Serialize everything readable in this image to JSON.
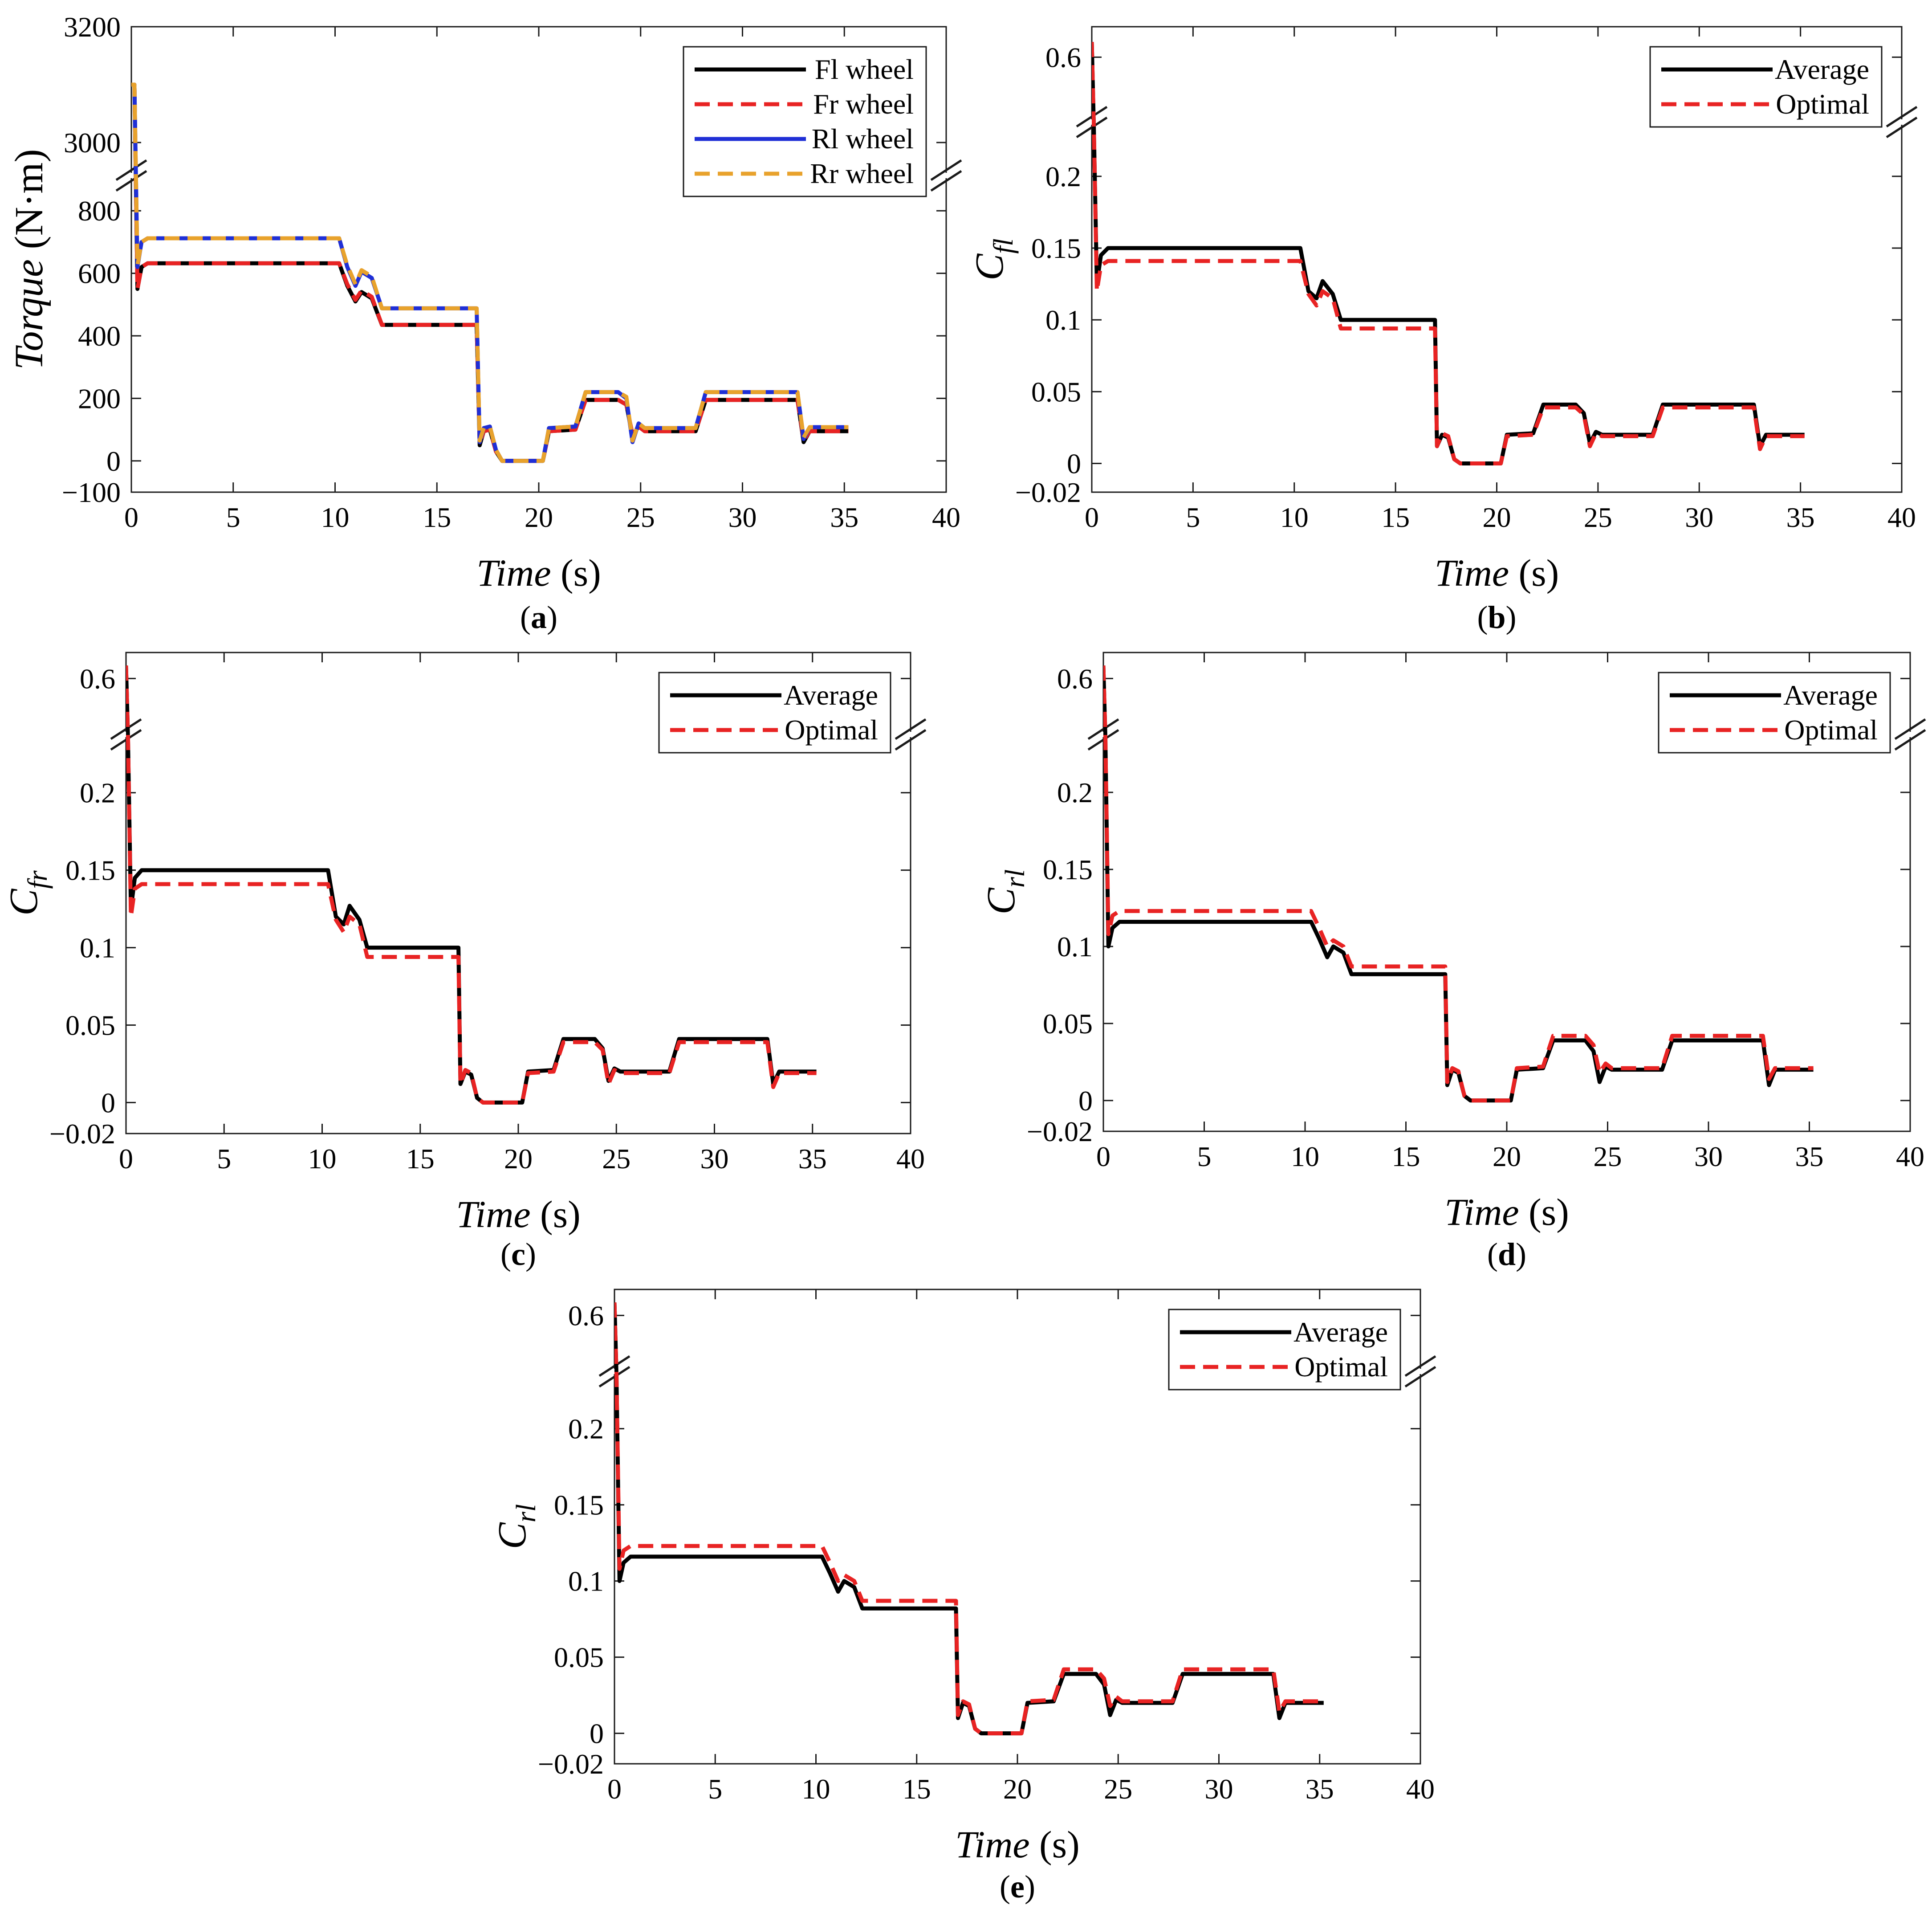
{
  "figure": {
    "panel_labels": [
      "(a)",
      "(b)",
      "(c)",
      "(d)",
      "(e)"
    ]
  },
  "chart_data": [
    {
      "id": "a",
      "type": "line",
      "panel_label": "(a)",
      "xlabel": "Time (s)",
      "ylabel": "Torque (N·m)",
      "xlim": [
        0,
        40
      ],
      "xticks": [
        "0",
        "5",
        "10",
        "15",
        "20",
        "25",
        "30",
        "35",
        "40"
      ],
      "axis_break": true,
      "ylim_lower": [
        -100,
        900
      ],
      "ylim_upper": [
        2950,
        3200
      ],
      "yticks_lower": [
        "−100",
        "0",
        "200",
        "400",
        "600",
        "800"
      ],
      "yticks_upper": [
        "3000",
        "3200"
      ],
      "legend_position": "top-right",
      "series": [
        {
          "name": "Fl wheel",
          "color": "#000000",
          "dash": "solid",
          "x": [
            0,
            0.15,
            0.3,
            0.5,
            0.8,
            10.2,
            10.6,
            11.0,
            11.3,
            11.8,
            12.3,
            16.95,
            17.1,
            17.3,
            17.6,
            17.9,
            18.2,
            20.2,
            20.5,
            21.8,
            22.3,
            23.9,
            24.3,
            24.6,
            24.9,
            25.2,
            25.6,
            27.7,
            28.2,
            32.7,
            33.0,
            33.3,
            35.2
          ],
          "y": [
            3100,
            3100,
            550,
            620,
            632,
            632,
            560,
            510,
            540,
            520,
            435,
            435,
            50,
            95,
            100,
            30,
            0,
            0,
            95,
            100,
            195,
            195,
            180,
            80,
            110,
            95,
            95,
            95,
            195,
            195,
            60,
            95,
            95
          ]
        },
        {
          "name": "Fr wheel",
          "color": "#e82323",
          "dash": "dashed",
          "x": [
            0,
            0.15,
            0.3,
            0.5,
            0.8,
            10.2,
            10.6,
            11.0,
            11.3,
            11.8,
            12.3,
            16.95,
            17.1,
            17.3,
            17.6,
            17.9,
            18.2,
            20.2,
            20.5,
            21.8,
            22.3,
            23.9,
            24.3,
            24.6,
            24.9,
            25.2,
            25.6,
            27.7,
            28.2,
            32.7,
            33.0,
            33.3,
            35.2
          ],
          "y": [
            3100,
            3100,
            550,
            620,
            632,
            632,
            565,
            515,
            545,
            525,
            435,
            435,
            55,
            95,
            100,
            30,
            0,
            0,
            95,
            100,
            195,
            195,
            180,
            85,
            110,
            95,
            95,
            95,
            195,
            195,
            65,
            95,
            95
          ]
        },
        {
          "name": "Rl wheel",
          "color": "#1f2fd6",
          "dash": "solid",
          "x": [
            0,
            0.15,
            0.3,
            0.5,
            0.8,
            10.2,
            10.6,
            11.0,
            11.3,
            11.8,
            12.3,
            16.95,
            17.1,
            17.3,
            17.6,
            17.9,
            18.2,
            20.2,
            20.5,
            21.8,
            22.3,
            23.9,
            24.3,
            24.6,
            24.9,
            25.2,
            25.6,
            27.7,
            28.2,
            32.7,
            33.0,
            33.3,
            35.2
          ],
          "y": [
            3100,
            3100,
            620,
            700,
            712,
            712,
            620,
            560,
            605,
            585,
            488,
            488,
            60,
            105,
            110,
            35,
            0,
            0,
            105,
            110,
            220,
            220,
            200,
            60,
            120,
            105,
            105,
            105,
            220,
            220,
            70,
            108,
            108
          ]
        },
        {
          "name": "Rr wheel",
          "color": "#e8a22c",
          "dash": "dashed",
          "x": [
            0,
            0.15,
            0.3,
            0.5,
            0.8,
            10.2,
            10.6,
            11.0,
            11.3,
            11.8,
            12.3,
            16.95,
            17.1,
            17.3,
            17.6,
            17.9,
            18.2,
            20.2,
            20.5,
            21.8,
            22.3,
            23.9,
            24.3,
            24.6,
            24.9,
            25.2,
            25.6,
            27.7,
            28.2,
            32.7,
            33.0,
            33.3,
            35.2
          ],
          "y": [
            3100,
            3100,
            625,
            700,
            712,
            712,
            625,
            565,
            610,
            590,
            488,
            488,
            65,
            105,
            110,
            35,
            0,
            0,
            105,
            110,
            220,
            220,
            205,
            65,
            120,
            105,
            105,
            105,
            220,
            220,
            75,
            108,
            108
          ]
        }
      ]
    },
    {
      "id": "b",
      "type": "line",
      "panel_label": "(b)",
      "xlabel": "Time (s)",
      "ylabel_base": "C",
      "ylabel_sub": "fl",
      "xlim": [
        0,
        40
      ],
      "xticks": [
        "0",
        "5",
        "10",
        "15",
        "20",
        "25",
        "30",
        "35",
        "40"
      ],
      "axis_break": true,
      "ylim_lower": [
        -0.02,
        0.235
      ],
      "ylim_upper": [
        0.56,
        0.62
      ],
      "yticks_lower": [
        "−0.02",
        "0",
        "0.05",
        "0.1",
        "0.15",
        "0.2"
      ],
      "yticks_upper": [
        "0.6"
      ],
      "legend_position": "top-right",
      "series": [
        {
          "name": "Average",
          "color": "#000000",
          "dash": "solid",
          "x": [
            0,
            0.1,
            0.25,
            0.45,
            0.8,
            10.3,
            10.7,
            11.1,
            11.4,
            11.9,
            12.3,
            16.95,
            17.05,
            17.3,
            17.6,
            17.9,
            18.2,
            20.2,
            20.5,
            21.8,
            22.3,
            23.9,
            24.3,
            24.6,
            24.9,
            25.2,
            25.6,
            27.7,
            28.2,
            32.7,
            33.0,
            33.3,
            35.2
          ],
          "y": [
            0.61,
            0.3,
            0.125,
            0.145,
            0.15,
            0.15,
            0.12,
            0.115,
            0.127,
            0.118,
            0.1,
            0.1,
            0.012,
            0.02,
            0.018,
            0.003,
            0,
            0,
            0.02,
            0.021,
            0.041,
            0.041,
            0.035,
            0.014,
            0.022,
            0.02,
            0.02,
            0.02,
            0.041,
            0.041,
            0.012,
            0.02,
            0.02
          ]
        },
        {
          "name": "Optimal",
          "color": "#e82323",
          "dash": "dashed",
          "x": [
            0,
            0.1,
            0.25,
            0.45,
            0.8,
            10.3,
            10.7,
            11.1,
            11.4,
            11.9,
            12.3,
            16.95,
            17.05,
            17.3,
            17.6,
            17.9,
            18.2,
            20.2,
            20.5,
            21.8,
            22.3,
            23.9,
            24.3,
            24.6,
            24.9,
            25.2,
            25.6,
            27.7,
            28.2,
            32.7,
            33.0,
            33.3,
            35.2
          ],
          "y": [
            0.61,
            0.3,
            0.12,
            0.138,
            0.141,
            0.141,
            0.118,
            0.11,
            0.12,
            0.115,
            0.094,
            0.094,
            0.012,
            0.021,
            0.019,
            0.003,
            0,
            0,
            0.019,
            0.02,
            0.039,
            0.039,
            0.034,
            0.012,
            0.021,
            0.019,
            0.019,
            0.019,
            0.039,
            0.039,
            0.01,
            0.019,
            0.019
          ]
        }
      ]
    },
    {
      "id": "c",
      "type": "line",
      "panel_label": "(c)",
      "xlabel": "Time (s)",
      "ylabel_base": "C",
      "ylabel_sub": "fr",
      "xlim": [
        0,
        40
      ],
      "xticks": [
        "0",
        "5",
        "10",
        "15",
        "20",
        "25",
        "30",
        "35",
        "40"
      ],
      "axis_break": true,
      "ylim_lower": [
        -0.02,
        0.235
      ],
      "ylim_upper": [
        0.56,
        0.62
      ],
      "yticks_lower": [
        "−0.02",
        "0",
        "0.05",
        "0.1",
        "0.15",
        "0.2"
      ],
      "yticks_upper": [
        "0.6"
      ],
      "legend_position": "top-right",
      "series": [
        {
          "name": "Average",
          "color": "#000000",
          "dash": "solid",
          "x": [
            0,
            0.1,
            0.25,
            0.45,
            0.8,
            10.3,
            10.7,
            11.1,
            11.4,
            11.9,
            12.3,
            16.95,
            17.05,
            17.3,
            17.6,
            17.9,
            18.2,
            20.2,
            20.5,
            21.8,
            22.3,
            23.9,
            24.3,
            24.6,
            24.9,
            25.2,
            25.6,
            27.7,
            28.2,
            32.7,
            33.0,
            33.3,
            35.2
          ],
          "y": [
            0.61,
            0.3,
            0.125,
            0.145,
            0.15,
            0.15,
            0.12,
            0.115,
            0.127,
            0.118,
            0.1,
            0.1,
            0.012,
            0.02,
            0.018,
            0.003,
            0,
            0,
            0.02,
            0.021,
            0.041,
            0.041,
            0.035,
            0.014,
            0.022,
            0.02,
            0.02,
            0.02,
            0.041,
            0.041,
            0.012,
            0.02,
            0.02
          ]
        },
        {
          "name": "Optimal",
          "color": "#e82323",
          "dash": "dashed",
          "x": [
            0,
            0.1,
            0.25,
            0.45,
            0.8,
            10.3,
            10.7,
            11.1,
            11.4,
            11.9,
            12.3,
            16.95,
            17.05,
            17.3,
            17.6,
            17.9,
            18.2,
            20.2,
            20.5,
            21.8,
            22.3,
            23.9,
            24.3,
            24.6,
            24.9,
            25.2,
            25.6,
            27.7,
            28.2,
            32.7,
            33.0,
            33.3,
            35.2
          ],
          "y": [
            0.61,
            0.3,
            0.12,
            0.138,
            0.141,
            0.141,
            0.118,
            0.11,
            0.12,
            0.115,
            0.094,
            0.094,
            0.012,
            0.021,
            0.019,
            0.003,
            0,
            0,
            0.019,
            0.02,
            0.039,
            0.039,
            0.034,
            0.012,
            0.021,
            0.019,
            0.019,
            0.019,
            0.039,
            0.039,
            0.01,
            0.019,
            0.019
          ]
        }
      ]
    },
    {
      "id": "d",
      "type": "line",
      "panel_label": "(d)",
      "xlabel": "Time (s)",
      "ylabel_base": "C",
      "ylabel_sub": "rl",
      "xlim": [
        0,
        40
      ],
      "xticks": [
        "0",
        "5",
        "10",
        "15",
        "20",
        "25",
        "30",
        "35",
        "40"
      ],
      "axis_break": true,
      "ylim_lower": [
        -0.02,
        0.235
      ],
      "ylim_upper": [
        0.56,
        0.62
      ],
      "yticks_lower": [
        "−0.02",
        "0",
        "0.05",
        "0.1",
        "0.15",
        "0.2"
      ],
      "yticks_upper": [
        "0.6"
      ],
      "legend_position": "top-right",
      "series": [
        {
          "name": "Average",
          "color": "#000000",
          "dash": "solid",
          "x": [
            0,
            0.1,
            0.25,
            0.45,
            0.8,
            10.3,
            10.7,
            11.1,
            11.4,
            11.9,
            12.3,
            16.95,
            17.05,
            17.3,
            17.6,
            17.9,
            18.2,
            20.2,
            20.5,
            21.8,
            22.3,
            23.9,
            24.3,
            24.6,
            24.9,
            25.2,
            25.6,
            27.7,
            28.2,
            32.7,
            33.0,
            33.3,
            35.2
          ],
          "y": [
            0.61,
            0.3,
            0.1,
            0.112,
            0.116,
            0.116,
            0.105,
            0.093,
            0.1,
            0.096,
            0.082,
            0.082,
            0.01,
            0.02,
            0.018,
            0.003,
            0,
            0,
            0.02,
            0.021,
            0.039,
            0.039,
            0.032,
            0.012,
            0.022,
            0.02,
            0.02,
            0.02,
            0.039,
            0.039,
            0.01,
            0.02,
            0.02
          ]
        },
        {
          "name": "Optimal",
          "color": "#e82323",
          "dash": "dashed",
          "x": [
            0,
            0.1,
            0.25,
            0.45,
            0.8,
            10.3,
            10.7,
            11.1,
            11.4,
            11.9,
            12.3,
            16.95,
            17.05,
            17.3,
            17.6,
            17.9,
            18.2,
            20.2,
            20.5,
            21.8,
            22.3,
            23.9,
            24.3,
            24.6,
            24.9,
            25.2,
            25.6,
            27.7,
            28.2,
            32.7,
            33.0,
            33.3,
            35.2
          ],
          "y": [
            0.61,
            0.3,
            0.108,
            0.12,
            0.123,
            0.123,
            0.112,
            0.1,
            0.104,
            0.1,
            0.087,
            0.087,
            0.012,
            0.021,
            0.019,
            0.003,
            0,
            0,
            0.021,
            0.022,
            0.042,
            0.042,
            0.036,
            0.018,
            0.024,
            0.021,
            0.021,
            0.021,
            0.042,
            0.042,
            0.014,
            0.021,
            0.021
          ]
        }
      ]
    },
    {
      "id": "e",
      "type": "line",
      "panel_label": "(e)",
      "xlabel": "Time (s)",
      "ylabel_base": "C",
      "ylabel_sub": "rl",
      "xlim": [
        0,
        40
      ],
      "xticks": [
        "0",
        "5",
        "10",
        "15",
        "20",
        "25",
        "30",
        "35",
        "40"
      ],
      "axis_break": true,
      "ylim_lower": [
        -0.02,
        0.235
      ],
      "ylim_upper": [
        0.56,
        0.62
      ],
      "yticks_lower": [
        "−0.02",
        "0",
        "0.05",
        "0.1",
        "0.15",
        "0.2"
      ],
      "yticks_upper": [
        "0.6"
      ],
      "legend_position": "top-right",
      "series": [
        {
          "name": "Average",
          "color": "#000000",
          "dash": "solid",
          "x": [
            0,
            0.1,
            0.25,
            0.45,
            0.8,
            10.3,
            10.7,
            11.1,
            11.4,
            11.9,
            12.3,
            16.95,
            17.05,
            17.3,
            17.6,
            17.9,
            18.2,
            20.2,
            20.5,
            21.8,
            22.3,
            23.9,
            24.3,
            24.6,
            24.9,
            25.2,
            25.6,
            27.7,
            28.2,
            32.7,
            33.0,
            33.3,
            35.2
          ],
          "y": [
            0.61,
            0.3,
            0.1,
            0.112,
            0.116,
            0.116,
            0.105,
            0.093,
            0.1,
            0.096,
            0.082,
            0.082,
            0.01,
            0.02,
            0.018,
            0.003,
            0,
            0,
            0.02,
            0.021,
            0.039,
            0.039,
            0.032,
            0.012,
            0.022,
            0.02,
            0.02,
            0.02,
            0.039,
            0.039,
            0.01,
            0.02,
            0.02
          ]
        },
        {
          "name": "Optimal",
          "color": "#e82323",
          "dash": "dashed",
          "x": [
            0,
            0.1,
            0.25,
            0.45,
            0.8,
            10.3,
            10.7,
            11.1,
            11.4,
            11.9,
            12.3,
            16.95,
            17.05,
            17.3,
            17.6,
            17.9,
            18.2,
            20.2,
            20.5,
            21.8,
            22.3,
            23.9,
            24.3,
            24.6,
            24.9,
            25.2,
            25.6,
            27.7,
            28.2,
            32.7,
            33.0,
            33.3,
            35.2
          ],
          "y": [
            0.61,
            0.3,
            0.108,
            0.12,
            0.123,
            0.123,
            0.112,
            0.1,
            0.104,
            0.1,
            0.087,
            0.087,
            0.012,
            0.021,
            0.019,
            0.003,
            0,
            0,
            0.021,
            0.022,
            0.042,
            0.042,
            0.036,
            0.018,
            0.024,
            0.021,
            0.021,
            0.021,
            0.042,
            0.042,
            0.014,
            0.021,
            0.021
          ]
        }
      ]
    }
  ]
}
